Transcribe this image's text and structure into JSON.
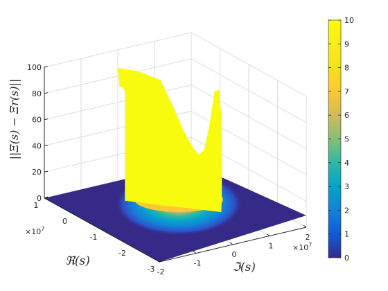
{
  "chart_data": {
    "type": "surface",
    "zlabel": "||Ξ(s) − Ξr(s)||",
    "xlabel": "ℜ(s)",
    "ylabel": "ℑ(s)",
    "x_ticks": [
      "1",
      "0",
      "-1",
      "-2",
      "-3"
    ],
    "x_exponent": "×10",
    "x_exponent_power": "7",
    "y_ticks": [
      "-2",
      "-1",
      "0",
      "1",
      "2"
    ],
    "y_exponent": "×10",
    "y_exponent_power": "7",
    "z_ticks": [
      "0",
      "20",
      "40",
      "60",
      "80",
      "100"
    ],
    "xlim": [
      -3,
      1
    ],
    "ylim": [
      -2,
      2
    ],
    "zlim": [
      0,
      100
    ],
    "colorbar": {
      "ticks": [
        "0",
        "1",
        "2",
        "3",
        "4",
        "5",
        "6",
        "7",
        "8",
        "9",
        "10"
      ],
      "range": [
        0,
        10
      ],
      "colormap": "parula"
    },
    "peak_plateau": 100,
    "secondary_peak": 90,
    "valley_min": 40,
    "floor_value": 0,
    "grid": true
  }
}
